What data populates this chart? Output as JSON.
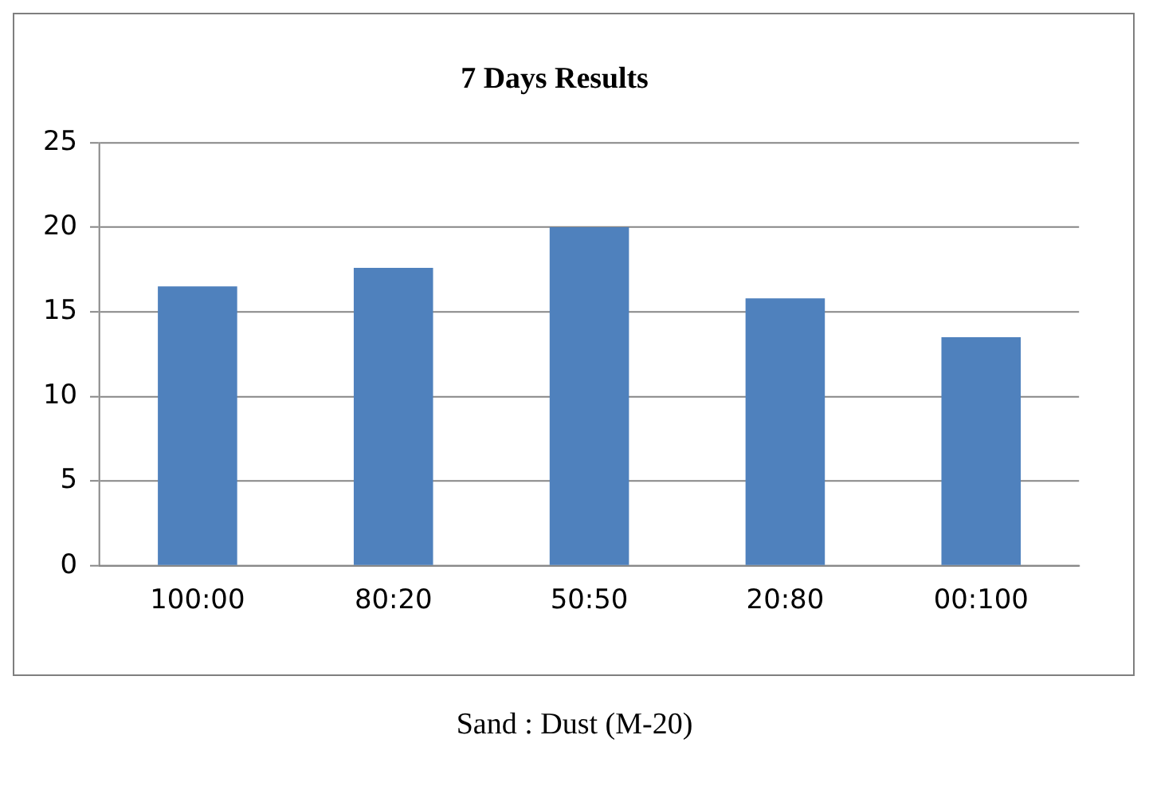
{
  "chart_data": {
    "type": "bar",
    "title": "7 Days Results",
    "xlabel": "Sand : Dust (M-20)",
    "categories": [
      "100:00",
      "80:20",
      "50:50",
      "20:80",
      "00:100"
    ],
    "values": [
      16.5,
      17.6,
      20,
      15.8,
      13.5
    ],
    "color": "#4f81bd",
    "ylim": [
      0,
      25
    ],
    "yticks": [
      0,
      5,
      10,
      15,
      20,
      25
    ],
    "grid": "y",
    "legend": false
  }
}
